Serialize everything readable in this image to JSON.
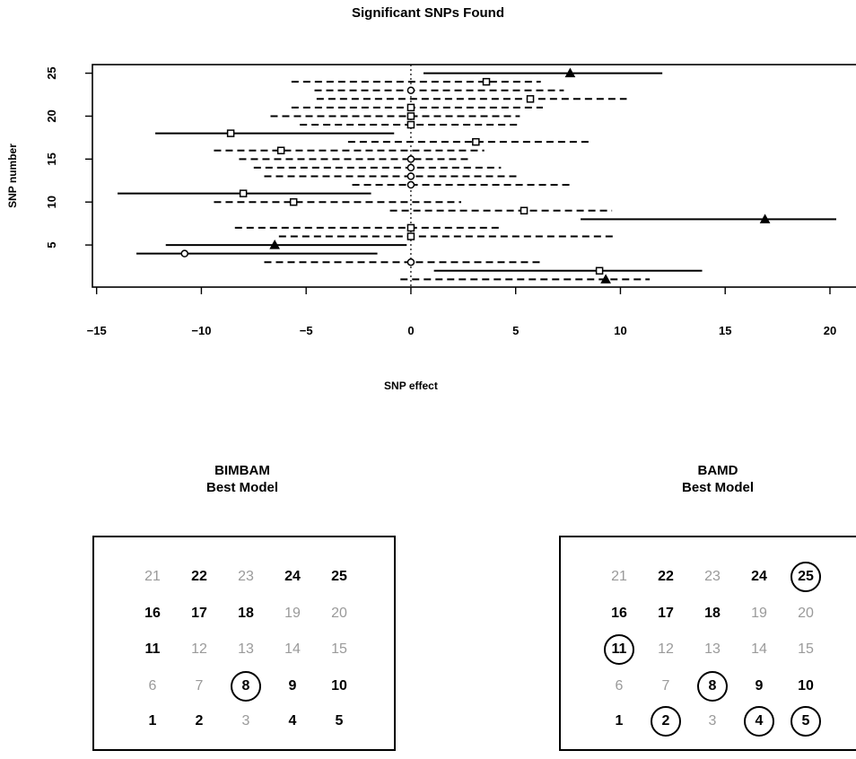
{
  "chart_data": [
    {
      "type": "forest",
      "title": "Significant SNPs Found",
      "xlabel": "SNP effect",
      "ylabel": "SNP number",
      "xlim": [
        -15.2,
        21.5
      ],
      "ylim": [
        0.1,
        26.0
      ],
      "xticks": [
        -15,
        -10,
        -5,
        0,
        5,
        10,
        15,
        20
      ],
      "yticks": [
        5,
        10,
        15,
        20,
        25
      ],
      "reference_line_x": 0,
      "series": [
        {
          "snp": 1,
          "estimate": 9.3,
          "low": -0.5,
          "high": 11.4,
          "marker": "triangle",
          "significant": false
        },
        {
          "snp": 2,
          "estimate": 9.0,
          "low": 1.1,
          "high": 13.9,
          "marker": "square",
          "significant": true
        },
        {
          "snp": 3,
          "estimate": 0.0,
          "low": -7.0,
          "high": 6.3,
          "marker": "circle",
          "significant": false
        },
        {
          "snp": 4,
          "estimate": -10.8,
          "low": -13.1,
          "high": -1.6,
          "marker": "circle",
          "significant": true
        },
        {
          "snp": 5,
          "estimate": -6.5,
          "low": -11.7,
          "high": -0.2,
          "marker": "triangle",
          "significant": true
        },
        {
          "snp": 6,
          "estimate": 0.0,
          "low": -6.3,
          "high": 9.8,
          "marker": "square",
          "significant": false
        },
        {
          "snp": 7,
          "estimate": 0.0,
          "low": -8.4,
          "high": 4.3,
          "marker": "square",
          "significant": false
        },
        {
          "snp": 8,
          "estimate": 16.9,
          "low": 8.1,
          "high": 20.3,
          "marker": "triangle",
          "significant": true
        },
        {
          "snp": 9,
          "estimate": 5.4,
          "low": -1.0,
          "high": 9.6,
          "marker": "square",
          "significant": false
        },
        {
          "snp": 10,
          "estimate": -5.6,
          "low": -9.4,
          "high": 2.4,
          "marker": "square",
          "significant": false
        },
        {
          "snp": 11,
          "estimate": -8.0,
          "low": -14.0,
          "high": -1.9,
          "marker": "square",
          "significant": true
        },
        {
          "snp": 12,
          "estimate": 0.0,
          "low": -2.8,
          "high": 7.6,
          "marker": "circle",
          "significant": false
        },
        {
          "snp": 13,
          "estimate": 0.0,
          "low": -7.0,
          "high": 5.2,
          "marker": "circle",
          "significant": false
        },
        {
          "snp": 14,
          "estimate": 0.0,
          "low": -7.5,
          "high": 4.3,
          "marker": "circle",
          "significant": false
        },
        {
          "snp": 15,
          "estimate": 0.0,
          "low": -8.2,
          "high": 2.8,
          "marker": "circle",
          "significant": false
        },
        {
          "snp": 16,
          "estimate": -6.2,
          "low": -9.4,
          "high": 3.5,
          "marker": "square",
          "significant": false
        },
        {
          "snp": 17,
          "estimate": 3.1,
          "low": -3.0,
          "high": 8.6,
          "marker": "square",
          "significant": false
        },
        {
          "snp": 18,
          "estimate": -8.6,
          "low": -12.2,
          "high": -0.8,
          "marker": "square",
          "significant": true
        },
        {
          "snp": 19,
          "estimate": 0.0,
          "low": -5.3,
          "high": 5.2,
          "marker": "square",
          "significant": false
        },
        {
          "snp": 20,
          "estimate": 0.0,
          "low": -6.7,
          "high": 5.2,
          "marker": "square",
          "significant": false
        },
        {
          "snp": 21,
          "estimate": 0.0,
          "low": -5.7,
          "high": 6.3,
          "marker": "square",
          "significant": false
        },
        {
          "snp": 22,
          "estimate": 5.7,
          "low": -4.5,
          "high": 10.3,
          "marker": "square",
          "significant": false
        },
        {
          "snp": 23,
          "estimate": 0.0,
          "low": -4.6,
          "high": 7.3,
          "marker": "circle",
          "significant": false
        },
        {
          "snp": 24,
          "estimate": 3.6,
          "low": -5.7,
          "high": 6.2,
          "marker": "square",
          "significant": false
        },
        {
          "snp": 25,
          "estimate": 7.6,
          "low": 0.6,
          "high": 12.0,
          "marker": "triangle",
          "significant": true
        }
      ]
    },
    {
      "type": "table",
      "title": "BIMBAM\nBest Model",
      "rows": [
        [
          {
            "n": "21",
            "bold": false,
            "circled": false
          },
          {
            "n": "22",
            "bold": true,
            "circled": false
          },
          {
            "n": "23",
            "bold": false,
            "circled": false
          },
          {
            "n": "24",
            "bold": true,
            "circled": false
          },
          {
            "n": "25",
            "bold": true,
            "circled": false
          }
        ],
        [
          {
            "n": "16",
            "bold": true,
            "circled": false
          },
          {
            "n": "17",
            "bold": true,
            "circled": false
          },
          {
            "n": "18",
            "bold": true,
            "circled": false
          },
          {
            "n": "19",
            "bold": false,
            "circled": false
          },
          {
            "n": "20",
            "bold": false,
            "circled": false
          }
        ],
        [
          {
            "n": "11",
            "bold": true,
            "circled": false
          },
          {
            "n": "12",
            "bold": false,
            "circled": false
          },
          {
            "n": "13",
            "bold": false,
            "circled": false
          },
          {
            "n": "14",
            "bold": false,
            "circled": false
          },
          {
            "n": "15",
            "bold": false,
            "circled": false
          }
        ],
        [
          {
            "n": "6",
            "bold": false,
            "circled": false
          },
          {
            "n": "7",
            "bold": false,
            "circled": false
          },
          {
            "n": "8",
            "bold": true,
            "circled": true
          },
          {
            "n": "9",
            "bold": true,
            "circled": false
          },
          {
            "n": "10",
            "bold": true,
            "circled": false
          }
        ],
        [
          {
            "n": "1",
            "bold": true,
            "circled": false
          },
          {
            "n": "2",
            "bold": true,
            "circled": false
          },
          {
            "n": "3",
            "bold": false,
            "circled": false
          },
          {
            "n": "4",
            "bold": true,
            "circled": false
          },
          {
            "n": "5",
            "bold": true,
            "circled": false
          }
        ]
      ]
    },
    {
      "type": "table",
      "title": "BAMD\nBest Model",
      "rows": [
        [
          {
            "n": "21",
            "bold": false,
            "circled": false
          },
          {
            "n": "22",
            "bold": true,
            "circled": false
          },
          {
            "n": "23",
            "bold": false,
            "circled": false
          },
          {
            "n": "24",
            "bold": true,
            "circled": false
          },
          {
            "n": "25",
            "bold": true,
            "circled": true
          }
        ],
        [
          {
            "n": "16",
            "bold": true,
            "circled": false
          },
          {
            "n": "17",
            "bold": true,
            "circled": false
          },
          {
            "n": "18",
            "bold": true,
            "circled": false
          },
          {
            "n": "19",
            "bold": false,
            "circled": false
          },
          {
            "n": "20",
            "bold": false,
            "circled": false
          }
        ],
        [
          {
            "n": "11",
            "bold": true,
            "circled": true
          },
          {
            "n": "12",
            "bold": false,
            "circled": false
          },
          {
            "n": "13",
            "bold": false,
            "circled": false
          },
          {
            "n": "14",
            "bold": false,
            "circled": false
          },
          {
            "n": "15",
            "bold": false,
            "circled": false
          }
        ],
        [
          {
            "n": "6",
            "bold": false,
            "circled": false
          },
          {
            "n": "7",
            "bold": false,
            "circled": false
          },
          {
            "n": "8",
            "bold": true,
            "circled": true
          },
          {
            "n": "9",
            "bold": true,
            "circled": false
          },
          {
            "n": "10",
            "bold": true,
            "circled": false
          }
        ],
        [
          {
            "n": "1",
            "bold": true,
            "circled": false
          },
          {
            "n": "2",
            "bold": true,
            "circled": true
          },
          {
            "n": "3",
            "bold": false,
            "circled": false
          },
          {
            "n": "4",
            "bold": true,
            "circled": true
          },
          {
            "n": "5",
            "bold": true,
            "circled": true
          }
        ]
      ]
    }
  ],
  "colors": {
    "ink": "#000000",
    "dim_number": "#9a9a9a",
    "background": "#ffffff"
  }
}
